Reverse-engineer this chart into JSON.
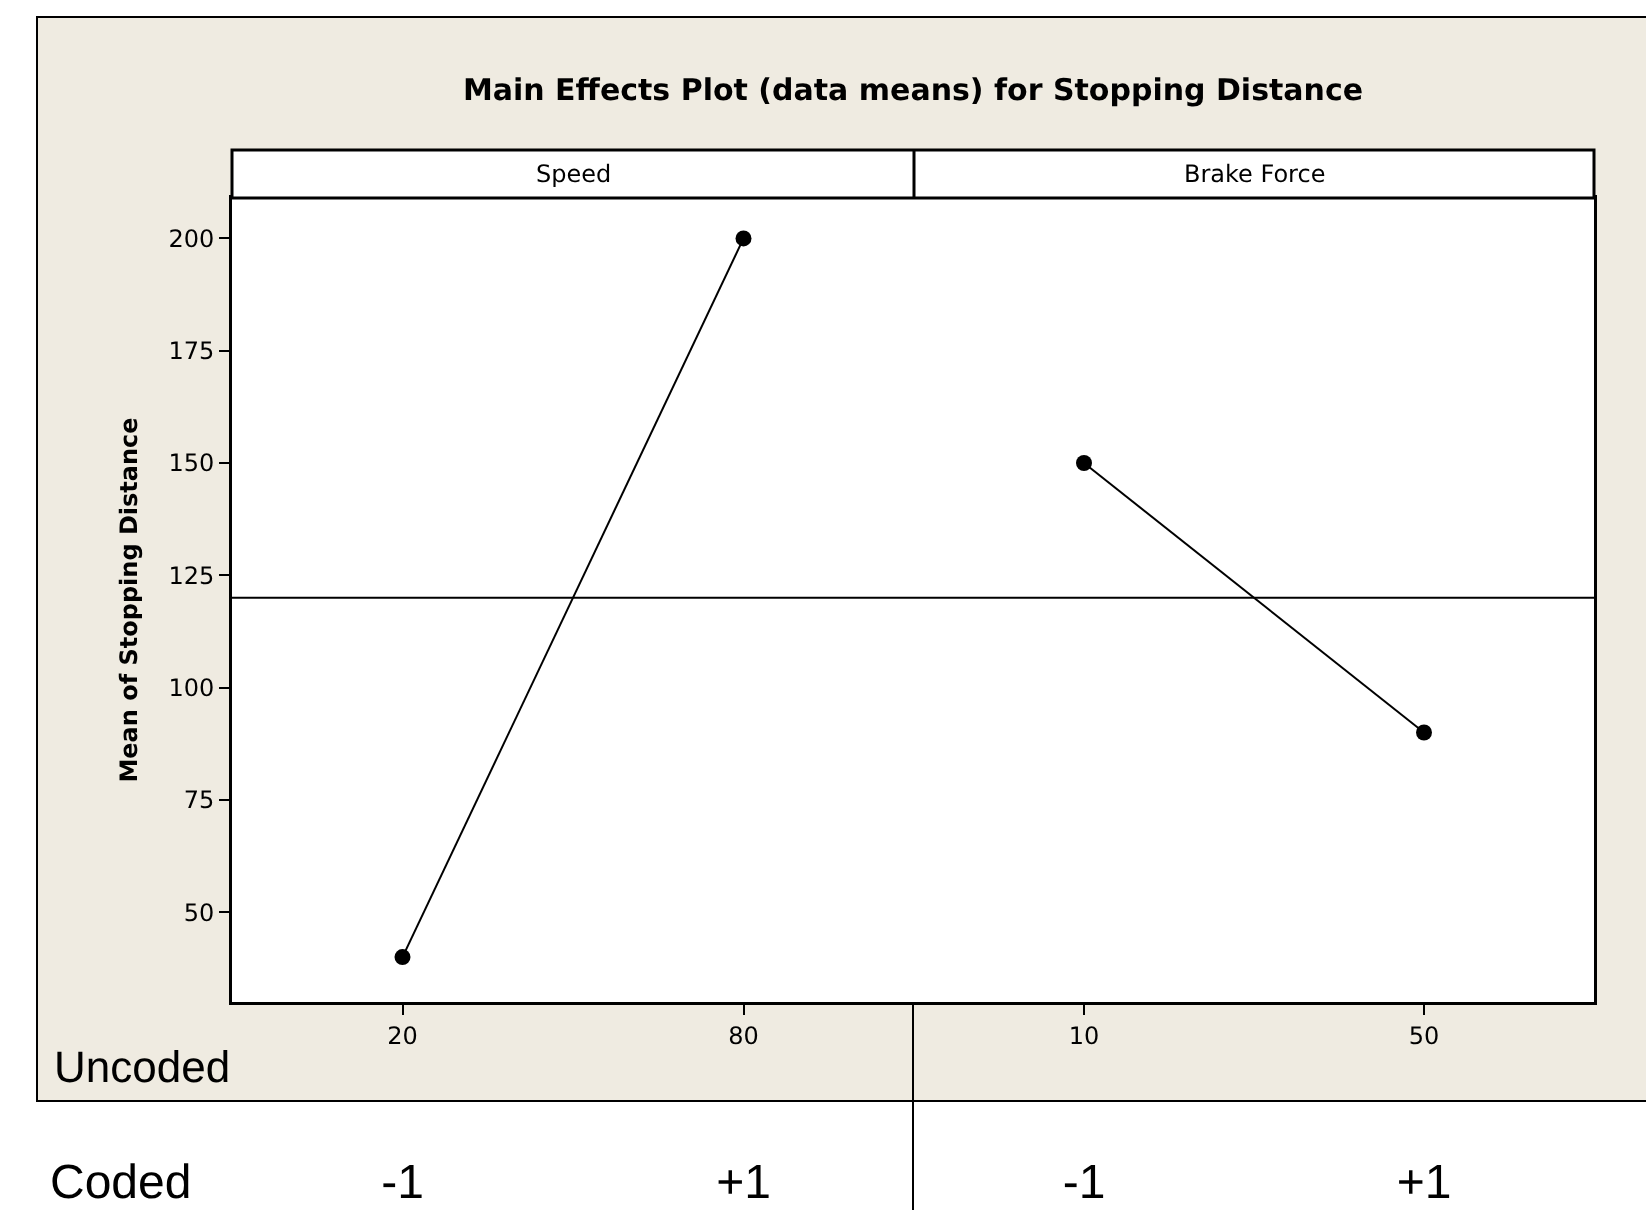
{
  "chart_data": [
    {
      "type": "line",
      "title": "Main Effects Plot (data means) for Stopping Distance",
      "subtitle": "Speed",
      "ylabel": "Mean of Stopping Distance",
      "categories": [
        "20",
        "80"
      ],
      "series": [
        {
          "color": "#000000",
          "values": [
            40,
            200
          ]
        }
      ],
      "ylim": [
        30,
        209
      ],
      "yticks": [
        50,
        75,
        100,
        125,
        150,
        175,
        200
      ],
      "ref_lines": [
        {
          "axis": "y",
          "value": 120,
          "color": "#000000"
        }
      ],
      "marker": "circle",
      "grid": false,
      "annotations": [
        "Uncoded",
        "Coded",
        "-1",
        "+1"
      ]
    },
    {
      "type": "line",
      "subtitle": "Brake Force",
      "categories": [
        "10",
        "50"
      ],
      "series": [
        {
          "color": "#000000",
          "values": [
            150,
            90
          ]
        }
      ],
      "ylim": [
        30,
        209
      ],
      "ref_lines": [
        {
          "axis": "y",
          "value": 120,
          "color": "#000000"
        }
      ],
      "marker": "circle",
      "grid": false,
      "tick_labels": "x",
      "annotations": [
        "-1",
        "+1"
      ]
    }
  ]
}
